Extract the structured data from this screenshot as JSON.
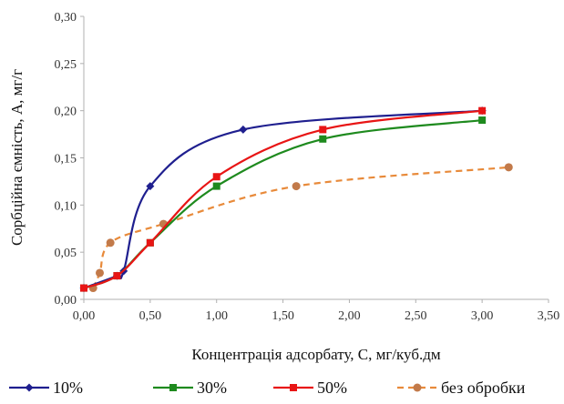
{
  "chart_data": {
    "type": "line",
    "xlabel": "Концентрація адсорбату, C, мг/куб.дм",
    "ylabel": "Сорбційна ємність, A, мг/г",
    "xlim": [
      0,
      3.5
    ],
    "ylim": [
      0,
      0.3
    ],
    "x_ticks": [
      "0,00",
      "0,50",
      "1,00",
      "1,50",
      "2,00",
      "2,50",
      "3,00",
      "3,50"
    ],
    "y_ticks": [
      "0,00",
      "0,05",
      "0,10",
      "0,15",
      "0,20",
      "0,25",
      "0,30"
    ],
    "grid": false,
    "legend_position": "bottom",
    "series": [
      {
        "name": "10%",
        "color": "#1f1f8f",
        "marker": "diamond",
        "dash": "solid",
        "x": [
          0.0,
          0.25,
          0.3,
          0.5,
          1.2,
          3.0
        ],
        "y": [
          0.012,
          0.025,
          0.03,
          0.12,
          0.18,
          0.2
        ]
      },
      {
        "name": "30%",
        "color": "#1e8a1e",
        "marker": "square",
        "dash": "solid",
        "x": [
          0.0,
          0.25,
          0.5,
          1.0,
          1.8,
          3.0
        ],
        "y": [
          0.012,
          0.025,
          0.06,
          0.12,
          0.17,
          0.19
        ]
      },
      {
        "name": "50%",
        "color": "#e81515",
        "marker": "square",
        "dash": "solid",
        "x": [
          0.0,
          0.25,
          0.5,
          1.0,
          1.8,
          3.0
        ],
        "y": [
          0.012,
          0.025,
          0.06,
          0.13,
          0.18,
          0.2
        ]
      },
      {
        "name": "без обробки",
        "color": "#e88a3a",
        "marker_color": "#c27a4a",
        "marker": "circle",
        "dash": "dashed",
        "x": [
          0.07,
          0.12,
          0.2,
          0.6,
          1.6,
          3.2
        ],
        "y": [
          0.012,
          0.028,
          0.06,
          0.08,
          0.12,
          0.14
        ]
      }
    ]
  }
}
